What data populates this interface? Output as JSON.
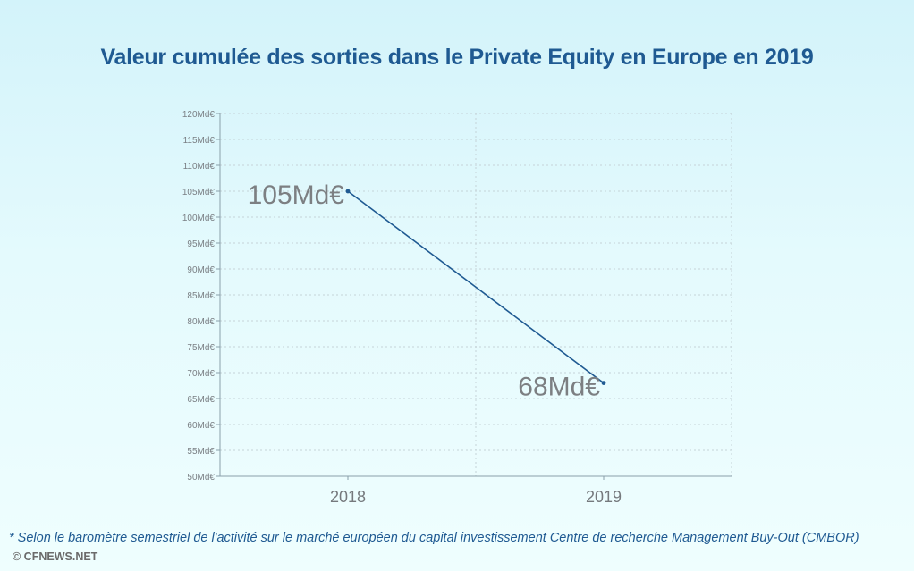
{
  "chart_data": {
    "type": "line",
    "title": "Valeur cumulée des sorties dans le Private Equity en Europe en 2019",
    "categories": [
      "2018",
      "2019"
    ],
    "values": [
      105,
      68
    ],
    "data_labels": [
      "105Md€",
      "68Md€"
    ],
    "ylim": [
      50,
      120
    ],
    "yticks": [
      50,
      55,
      60,
      65,
      70,
      75,
      80,
      85,
      90,
      95,
      100,
      105,
      110,
      115,
      120
    ],
    "ytick_labels": [
      "50Md€",
      "55Md€",
      "60Md€",
      "65Md€",
      "70Md€",
      "75Md€",
      "80Md€",
      "85Md€",
      "90Md€",
      "95Md€",
      "100Md€",
      "105Md€",
      "110Md€",
      "115Md€",
      "120Md€"
    ],
    "xlabel": "",
    "ylabel": "",
    "grid": true,
    "line_color": "#1f5a92"
  },
  "footnote": "* Selon le baromètre semestriel de l'activité sur le marché européen du capital investissement Centre de recherche Management Buy-Out (CMBOR)",
  "copyright": "© CFNEWS.NET"
}
